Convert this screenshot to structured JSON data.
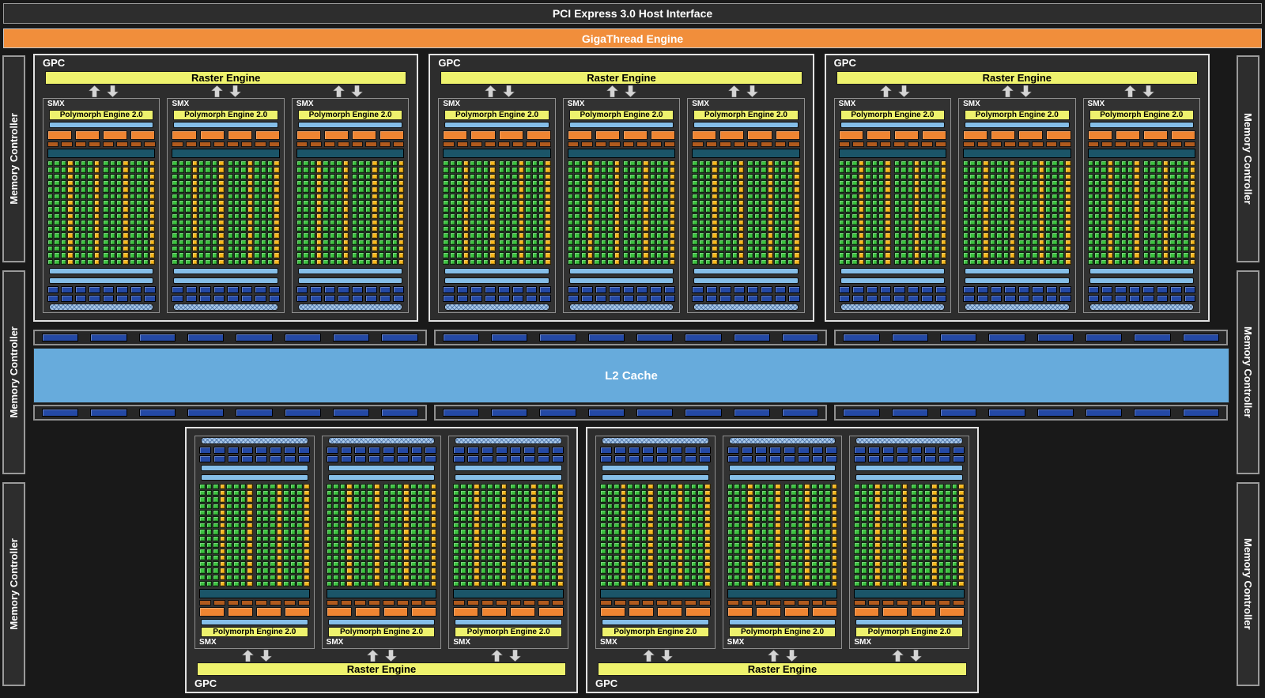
{
  "header": {
    "pci_label": "PCI Express 3.0 Host Interface",
    "gigathread_label": "GigaThread Engine"
  },
  "labels": {
    "gpc": "GPC",
    "smx": "SMX",
    "raster_engine": "Raster Engine",
    "polymorph_engine": "Polymorph Engine 2.0",
    "l2_cache": "L2 Cache",
    "memory_controller": "Memory Controller"
  },
  "structure": {
    "top_gpc_count": 3,
    "bottom_gpc_count": 2,
    "smx_per_gpc": 3,
    "memory_controllers_per_side": 3,
    "crossbar_rows": 2,
    "crossbar_groups_per_row": 3,
    "segments_per_crossbar_group": 8,
    "smx_core_grid": {
      "rows": 16,
      "halves": 2,
      "cols_per_half": 8,
      "yellow_cols_per_half": [
        3,
        7
      ]
    },
    "orange_units_per_row": 4,
    "dark_orange_units_per_row": 8,
    "dark_blue_units_per_row": 8,
    "smx_rows_top_to_bottom": [
      "smx-label",
      "polymorph-engine",
      "light-blue-bar",
      "orange-unit-row",
      "dark-orange-unit-row",
      "teal-bar",
      "core-grid",
      "light-blue-bar",
      "light-blue-bar",
      "dark-blue-unit-row",
      "dark-blue-unit-row",
      "hatched-bar"
    ]
  },
  "colors": {
    "background": "#191919",
    "panel": "#2d2d2d",
    "border_light": "#e2e2e2",
    "border_gray": "#8f8f8f",
    "gigathread_orange": "#f18e3b",
    "raster_yellow": "#eef26d",
    "core_green": "#3bc33f",
    "core_yellow": "#f7b81c",
    "orange": "#ef8532",
    "dark_orange": "#b05a1d",
    "teal": "#1b5568",
    "light_blue": "#85bee8",
    "dark_blue": "#2449a5",
    "hatch_blue": "#a9c9e9",
    "l2_blue": "#67abdc",
    "arrow_gray": "#d4d4d4"
  }
}
